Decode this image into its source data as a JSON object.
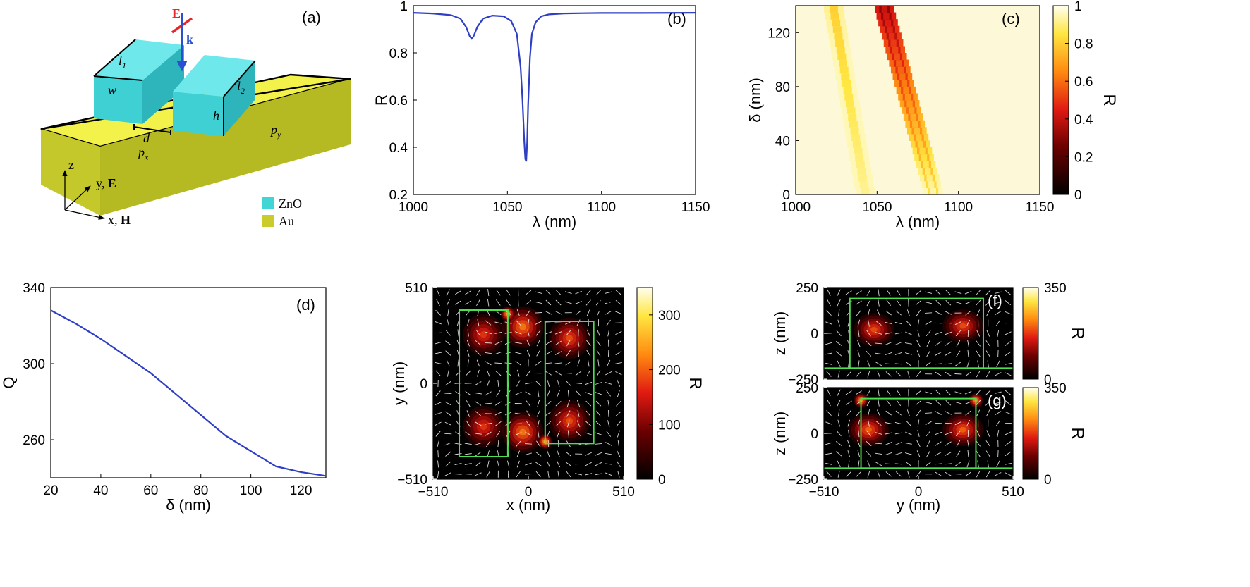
{
  "panel_a": {
    "label": "(a)",
    "e_label": "E",
    "k_label": "k",
    "l1_label": "l",
    "l1_sub": "1",
    "l2_label": "l",
    "l2_sub": "2",
    "w_label": "w",
    "h_label": "h",
    "d_label": "d",
    "px_label": "p",
    "px_sub": "x",
    "py_label": "p",
    "py_sub": "y",
    "axis_z": "z",
    "axis_y": "y,",
    "axis_y_bold": "E",
    "axis_x": "x,",
    "axis_x_bold": "H",
    "legend": [
      {
        "label": "ZnO",
        "color": "#40d6d6"
      },
      {
        "label": "Au",
        "color": "#c9cc2c"
      }
    ],
    "colors": {
      "zno_top": "#6fe8ec",
      "zno_front": "#3fd0d4",
      "zno_side": "#2eb5bc",
      "au_top": "#f2f24a",
      "au_front": "#c4c82a",
      "au_side": "#a9ae1c",
      "e_arrow": "#e8262a",
      "k_arrow": "#2a4fd0"
    }
  },
  "chart_data": [
    {
      "id": "b",
      "type": "line",
      "label": "(b)",
      "xlabel": "λ (nm)",
      "ylabel": "R",
      "xlim": [
        1000,
        1150
      ],
      "ylim": [
        0.2,
        1
      ],
      "xticks": [
        "1000",
        "1050",
        "1100",
        "1150"
      ],
      "yticks": [
        "0.2",
        "0.4",
        "0.6",
        "0.8",
        "1"
      ],
      "series": [
        {
          "name": "R",
          "color": "#2f3fc4",
          "x": [
            1000,
            1010,
            1020,
            1025,
            1028,
            1030,
            1031,
            1032,
            1034,
            1037,
            1042,
            1048,
            1052,
            1055,
            1057,
            1058,
            1059,
            1059.5,
            1060,
            1060.5,
            1061,
            1062,
            1063,
            1065,
            1068,
            1072,
            1080,
            1090,
            1100,
            1120,
            1150
          ],
          "y": [
            0.97,
            0.967,
            0.96,
            0.945,
            0.91,
            0.87,
            0.86,
            0.87,
            0.91,
            0.945,
            0.958,
            0.955,
            0.935,
            0.88,
            0.74,
            0.6,
            0.42,
            0.35,
            0.34,
            0.42,
            0.58,
            0.78,
            0.88,
            0.93,
            0.955,
            0.963,
            0.967,
            0.968,
            0.969,
            0.969,
            0.97
          ]
        }
      ]
    },
    {
      "id": "c",
      "type": "heatmap",
      "label": "(c)",
      "xlabel": "λ (nm)",
      "ylabel": "δ (nm)",
      "xlim": [
        1000,
        1150
      ],
      "ylim": [
        0,
        140
      ],
      "xticks": [
        "1000",
        "1050",
        "1100",
        "1150"
      ],
      "yticks": [
        "0",
        "40",
        "80",
        "120"
      ],
      "colorbar_label": "R",
      "colorbar_ticks": [
        "0",
        "0.2",
        "0.4",
        "0.6",
        "0.8",
        "1"
      ],
      "modes": [
        {
          "name": "main",
          "lambda_at_0": 1085,
          "lambda_at_140": 1054,
          "min_R_at_0": 0.85,
          "min_R_at_140": 0.3
        },
        {
          "name": "weak",
          "lambda_at_0": 1043,
          "lambda_at_140": 1023,
          "min_R_at_0": 0.92,
          "min_R_at_140": 0.8
        }
      ]
    },
    {
      "id": "d",
      "type": "line",
      "label": "(d)",
      "xlabel": "δ (nm)",
      "ylabel": "Q",
      "xlim": [
        20,
        130
      ],
      "ylim": [
        240,
        340
      ],
      "xticks": [
        "20",
        "40",
        "60",
        "80",
        "100",
        "120"
      ],
      "yticks": [
        "260",
        "300",
        "340"
      ],
      "series": [
        {
          "name": "Q",
          "color": "#2f3fc4",
          "x": [
            20,
            30,
            40,
            50,
            60,
            70,
            80,
            90,
            100,
            110,
            120,
            130
          ],
          "y": [
            328,
            321,
            313,
            304,
            295,
            284,
            273,
            262,
            254,
            246,
            243,
            241
          ]
        }
      ]
    },
    {
      "id": "e",
      "type": "heatmap",
      "label": "(e)",
      "xlabel": "x (nm)",
      "ylabel": "y (nm)",
      "xlim": [
        -510,
        510
      ],
      "ylim": [
        -510,
        510
      ],
      "xticks": [
        "−510",
        "0",
        "510"
      ],
      "yticks": [
        "−510",
        "0",
        "510"
      ],
      "colorbar_label": "R",
      "colorbar_ticks": [
        "0",
        "100",
        "200",
        "300"
      ],
      "colorbar_max": 350,
      "blocks": [
        {
          "x0": -370,
          "x1": -110,
          "y0": -390,
          "y1": 390
        },
        {
          "x0": 90,
          "x1": 350,
          "y0": -320,
          "y1": 330
        }
      ],
      "hotspots": [
        {
          "x": -240,
          "y": 260,
          "value": 200
        },
        {
          "x": -240,
          "y": -230,
          "value": 200
        },
        {
          "x": 220,
          "y": 240,
          "value": 220
        },
        {
          "x": 220,
          "y": -200,
          "value": 220
        },
        {
          "x": -30,
          "y": 300,
          "value": 260
        },
        {
          "x": -30,
          "y": -260,
          "value": 260
        },
        {
          "x": -110,
          "y": 370,
          "value": 330
        },
        {
          "x": 90,
          "y": -310,
          "value": 330
        }
      ]
    },
    {
      "id": "f",
      "type": "heatmap",
      "label": "(f)",
      "xlabel": "",
      "ylabel": "z (nm)",
      "xlim": [
        -510,
        510
      ],
      "ylim": [
        -250,
        250
      ],
      "yticks": [
        "−250",
        "0",
        "250"
      ],
      "colorbar_label": "R",
      "colorbar_ticks": [
        "0",
        "350"
      ],
      "colorbar_max": 350,
      "substrate_z": -190,
      "block": {
        "x0": -370,
        "x1": 350,
        "z0": -190,
        "z1": 190
      },
      "hotspots": [
        {
          "x": -240,
          "y": 20,
          "value": 220
        },
        {
          "x": 240,
          "y": 40,
          "value": 220
        }
      ]
    },
    {
      "id": "g",
      "type": "heatmap",
      "label": "(g)",
      "xlabel": "y (nm)",
      "ylabel": "z (nm)",
      "xlim": [
        -510,
        510
      ],
      "ylim": [
        -250,
        250
      ],
      "xticks": [
        "−510",
        "0",
        "510"
      ],
      "yticks": [
        "−250",
        "0",
        "250"
      ],
      "colorbar_label": "R",
      "colorbar_ticks": [
        "0",
        "350"
      ],
      "colorbar_max": 350,
      "substrate_z": -190,
      "block": {
        "x0": -310,
        "x1": 310,
        "z0": -190,
        "z1": 190
      },
      "hotspots": [
        {
          "x": -270,
          "y": 20,
          "value": 240
        },
        {
          "x": 240,
          "y": 20,
          "value": 240
        },
        {
          "x": -310,
          "y": 180,
          "value": 320
        },
        {
          "x": 310,
          "y": 180,
          "value": 320
        }
      ]
    }
  ]
}
